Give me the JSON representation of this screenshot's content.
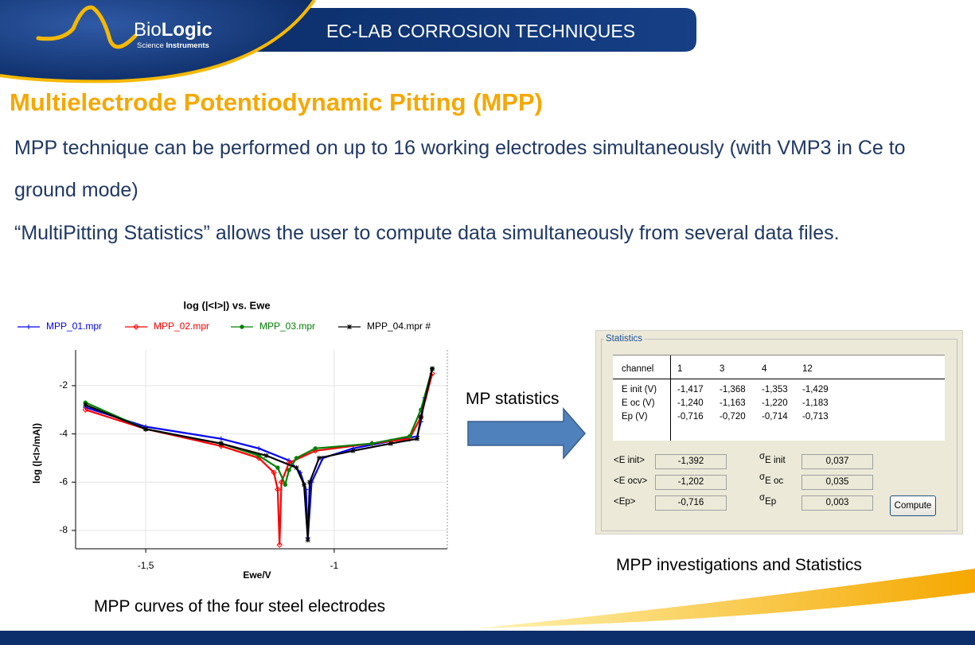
{
  "header": {
    "logo": {
      "bio": "Bio",
      "logic": "Logic",
      "tagline_1": "Science",
      "tagline_2": "Instruments"
    },
    "banner": "EC-LAB CORROSION TECHNIQUES"
  },
  "title": "Multielectrode Potentiodynamic Pitting (MPP)",
  "paragraphs": [
    "MPP technique can be performed on up to 16 working electrodes simultaneously (with VMP3 in Ce to ground mode)",
    "“MultiPitting Statistics” allows the user to compute data simultaneously from several data files."
  ],
  "chart_data": {
    "type": "line",
    "title": "log (|<I>|) vs. Ewe",
    "x_label": "Ewe/V",
    "y_label": "log (|<I>/mA|)",
    "xlim": [
      -1.686,
      -0.7
    ],
    "ylim": [
      -8.76,
      -0.52
    ],
    "xticks": [
      {
        "value": -1.5,
        "label": "-1,5"
      },
      -1
    ],
    "yticks": [
      -2,
      -4,
      -6,
      -8
    ],
    "grid": true,
    "series": [
      {
        "name": "MPP_01.mpr",
        "color": "#0000ff",
        "marker": "plus",
        "x": [
          -1.66,
          -1.5,
          -1.3,
          -1.2,
          -1.12,
          -1.09,
          -1.075,
          -1.07,
          -1.06,
          -1.03,
          -0.95,
          -0.85,
          -0.78,
          -0.77,
          -0.76,
          -0.74
        ],
        "values": [
          -2.9,
          -3.7,
          -4.2,
          -4.6,
          -5.1,
          -5.6,
          -6.3,
          -8.3,
          -6.0,
          -5.0,
          -4.6,
          -4.3,
          -4.1,
          -3.5,
          -2.5,
          -1.3
        ]
      },
      {
        "name": "MPP_02.mpr",
        "color": "#ff0000",
        "marker": "diamond",
        "x": [
          -1.66,
          -1.5,
          -1.3,
          -1.2,
          -1.16,
          -1.15,
          -1.145,
          -1.14,
          -1.12,
          -1.05,
          -0.9,
          -0.8,
          -0.77,
          -0.74
        ],
        "values": [
          -3.0,
          -3.8,
          -4.5,
          -5.0,
          -5.6,
          -6.3,
          -8.6,
          -6.0,
          -5.2,
          -4.7,
          -4.4,
          -4.2,
          -3.3,
          -1.5
        ]
      },
      {
        "name": "MPP_03.mpr",
        "color": "#008000",
        "marker": "circle",
        "x": [
          -1.66,
          -1.5,
          -1.3,
          -1.2,
          -1.15,
          -1.13,
          -1.12,
          -1.1,
          -1.05,
          -0.9,
          -0.8,
          -0.77,
          -0.74
        ],
        "values": [
          -2.7,
          -3.8,
          -4.4,
          -4.9,
          -5.4,
          -6.1,
          -5.5,
          -5.0,
          -4.6,
          -4.4,
          -4.1,
          -3.0,
          -1.3
        ]
      },
      {
        "name": "MPP_04.mpr #",
        "color": "#000000",
        "marker": "star",
        "x": [
          -1.66,
          -1.5,
          -1.3,
          -1.18,
          -1.1,
          -1.08,
          -1.07,
          -1.065,
          -1.04,
          -0.95,
          -0.85,
          -0.78,
          -0.77,
          -0.74
        ],
        "values": [
          -2.8,
          -3.8,
          -4.4,
          -4.9,
          -5.4,
          -6.1,
          -8.4,
          -6.0,
          -5.0,
          -4.7,
          -4.4,
          -4.2,
          -3.3,
          -1.3
        ]
      }
    ]
  },
  "arrow_label": "MP statistics",
  "statistics": {
    "title": "Statistics",
    "table": {
      "header": [
        "channel",
        "1",
        "3",
        "4",
        "12"
      ],
      "rows": [
        [
          "E init (V)",
          "-1,417",
          "-1,368",
          "-1,353",
          "-1,429"
        ],
        [
          "E oc (V)",
          "-1,240",
          "-1,163",
          "-1,220",
          "-1,183"
        ],
        [
          "Ep (V)",
          "-0,716",
          "-0,720",
          "-0,714",
          "-0,713"
        ]
      ]
    },
    "sigma_symbol": "σ",
    "summary": [
      {
        "label": "<E init>",
        "mean": "-1,392",
        "sigma_label": "E init",
        "sigma": "0,037"
      },
      {
        "label": "<E ocv>",
        "mean": "-1,202",
        "sigma_label": "E oc",
        "sigma": "0,035"
      },
      {
        "label": "<Ep>",
        "mean": "-0,716",
        "sigma_label": "Ep",
        "sigma": "0,003"
      }
    ],
    "button": "Compute"
  },
  "captions": {
    "chart": "MPP curves of the four steel electrodes",
    "statistics": "MPP investigations and Statistics"
  }
}
